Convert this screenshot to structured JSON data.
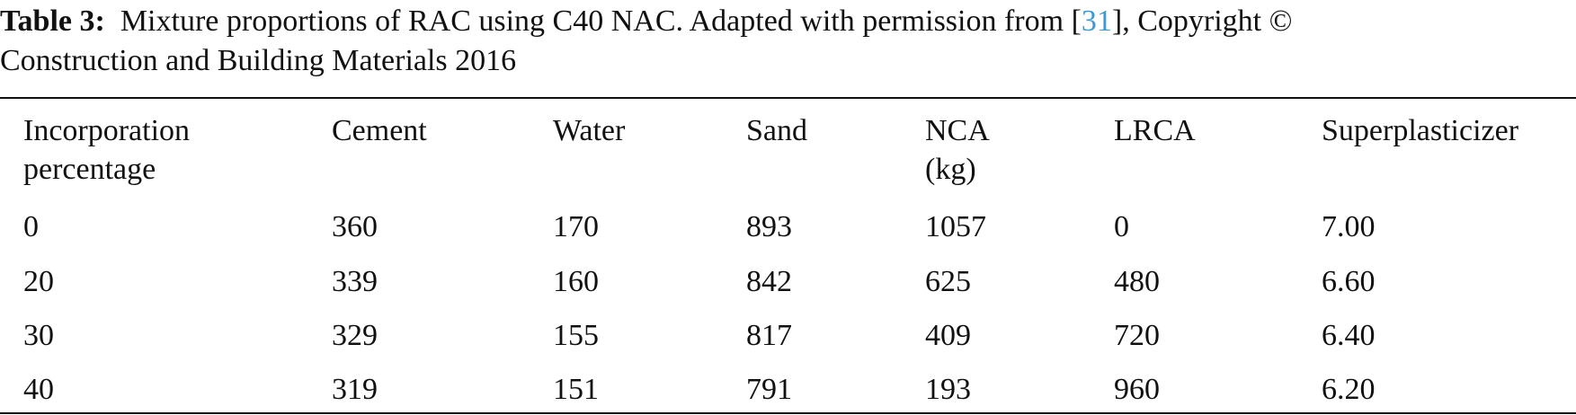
{
  "caption": {
    "label": "Table 3:",
    "text_before_ref": "Mixture proportions of RAC using C40 NAC. Adapted with permission from [",
    "ref": "31",
    "text_after_ref": "], Copyright ©",
    "line2": "Construction and Building Materials 2016"
  },
  "table": {
    "headers": [
      {
        "line1": "Incorporation",
        "line2": "percentage"
      },
      {
        "line1": "Cement",
        "line2": ""
      },
      {
        "line1": "Water",
        "line2": ""
      },
      {
        "line1": "Sand",
        "line2": ""
      },
      {
        "line1": "NCA",
        "line2": "(kg)"
      },
      {
        "line1": "LRCA",
        "line2": ""
      },
      {
        "line1": "Superplasticizer",
        "line2": ""
      }
    ],
    "rows": [
      [
        "0",
        "360",
        "170",
        "893",
        "1057",
        "0",
        "7.00"
      ],
      [
        "20",
        "339",
        "160",
        "842",
        "625",
        "480",
        "6.60"
      ],
      [
        "30",
        "329",
        "155",
        "817",
        "409",
        "720",
        "6.40"
      ],
      [
        "40",
        "319",
        "151",
        "791",
        "193",
        "960",
        "6.20"
      ]
    ]
  }
}
